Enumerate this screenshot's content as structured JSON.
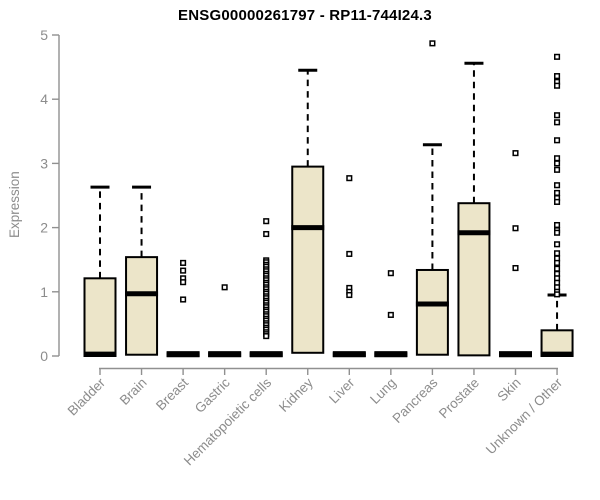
{
  "colors": {
    "box_fill": "#ece5c9",
    "box_border": "#000000",
    "median": "#000000",
    "whisker": "#000000",
    "axis_line": "#909090",
    "axis_text": "#8c8c8c",
    "title_text": "#000000",
    "outlier_fill": "#ffffff",
    "outlier_stroke": "#000000"
  },
  "chart_data": {
    "type": "boxplot",
    "title": "ENSG00000261797 - RP11-744I24.3",
    "ylabel": "Expression",
    "xlabel": "",
    "ylim": [
      0,
      5
    ],
    "yticks": [
      0,
      1,
      2,
      3,
      4,
      5
    ],
    "grid": false,
    "legend": "none",
    "categories": [
      "Bladder",
      "Brain",
      "Breast",
      "Gastric",
      "Hematopoietic cells",
      "Kidney",
      "Liver",
      "Lung",
      "Pancreas",
      "Prostate",
      "Skin",
      "Unknown / Other"
    ],
    "boxes": [
      {
        "category": "Bladder",
        "lower_whisker": 0,
        "q1": 0,
        "median": 0.03,
        "q3": 1.21,
        "upper_whisker": 2.63,
        "outliers": []
      },
      {
        "category": "Brain",
        "lower_whisker": 0,
        "q1": 0.02,
        "median": 0.97,
        "q3": 1.54,
        "upper_whisker": 2.63,
        "outliers": []
      },
      {
        "category": "Breast",
        "lower_whisker": 0,
        "q1": 0,
        "median": 0.02,
        "q3": 0.06,
        "upper_whisker": 0.06,
        "outliers": [
          1.45,
          1.33,
          1.21,
          1.15,
          0.88
        ]
      },
      {
        "category": "Gastric",
        "lower_whisker": 0,
        "q1": 0,
        "median": 0.02,
        "q3": 0.06,
        "upper_whisker": 0.06,
        "outliers": [
          1.07
        ]
      },
      {
        "category": "Hematopoietic cells",
        "lower_whisker": 0,
        "q1": 0,
        "median": 0.02,
        "q3": 0.06,
        "upper_whisker": 0.06,
        "outliers": [
          2.1,
          1.9,
          1.49,
          1.46,
          1.42,
          1.39,
          1.35,
          1.32,
          1.28,
          1.25,
          1.21,
          1.18,
          1.14,
          1.11,
          1.07,
          1.04,
          1.0,
          0.97,
          0.93,
          0.9,
          0.86,
          0.83,
          0.79,
          0.76,
          0.72,
          0.69,
          0.65,
          0.62,
          0.58,
          0.55,
          0.51,
          0.48,
          0.44,
          0.41,
          0.37,
          0.34,
          0.31
        ]
      },
      {
        "category": "Kidney",
        "lower_whisker": 0,
        "q1": 0.05,
        "median": 2.0,
        "q3": 2.95,
        "upper_whisker": 4.45,
        "outliers": []
      },
      {
        "category": "Liver",
        "lower_whisker": 0,
        "q1": 0,
        "median": 0.02,
        "q3": 0.06,
        "upper_whisker": 0.06,
        "outliers": [
          2.77,
          1.59,
          1.06,
          1.0,
          0.95
        ]
      },
      {
        "category": "Lung",
        "lower_whisker": 0,
        "q1": 0,
        "median": 0.02,
        "q3": 0.06,
        "upper_whisker": 0.06,
        "outliers": [
          1.29,
          0.64
        ]
      },
      {
        "category": "Pancreas",
        "lower_whisker": 0,
        "q1": 0.02,
        "median": 0.81,
        "q3": 1.34,
        "upper_whisker": 3.29,
        "outliers": [
          4.87
        ]
      },
      {
        "category": "Prostate",
        "lower_whisker": 0,
        "q1": 0.01,
        "median": 1.92,
        "q3": 2.38,
        "upper_whisker": 4.56,
        "outliers": []
      },
      {
        "category": "Skin",
        "lower_whisker": 0,
        "q1": 0,
        "median": 0.02,
        "q3": 0.06,
        "upper_whisker": 0.06,
        "outliers": [
          3.16,
          1.99,
          1.37
        ]
      },
      {
        "category": "Unknown / Other",
        "lower_whisker": 0,
        "q1": 0,
        "median": 0.03,
        "q3": 0.4,
        "upper_whisker": 0.95,
        "outliers": [
          4.66,
          4.36,
          4.27,
          4.21,
          3.75,
          3.64,
          3.36,
          3.08,
          3.0,
          2.9,
          2.66,
          2.54,
          2.46,
          2.4,
          2.04,
          1.96,
          1.92,
          1.74,
          1.6,
          1.52,
          1.45,
          1.36,
          1.28,
          1.21,
          1.14,
          1.07,
          1.0,
          0.96
        ]
      }
    ]
  }
}
